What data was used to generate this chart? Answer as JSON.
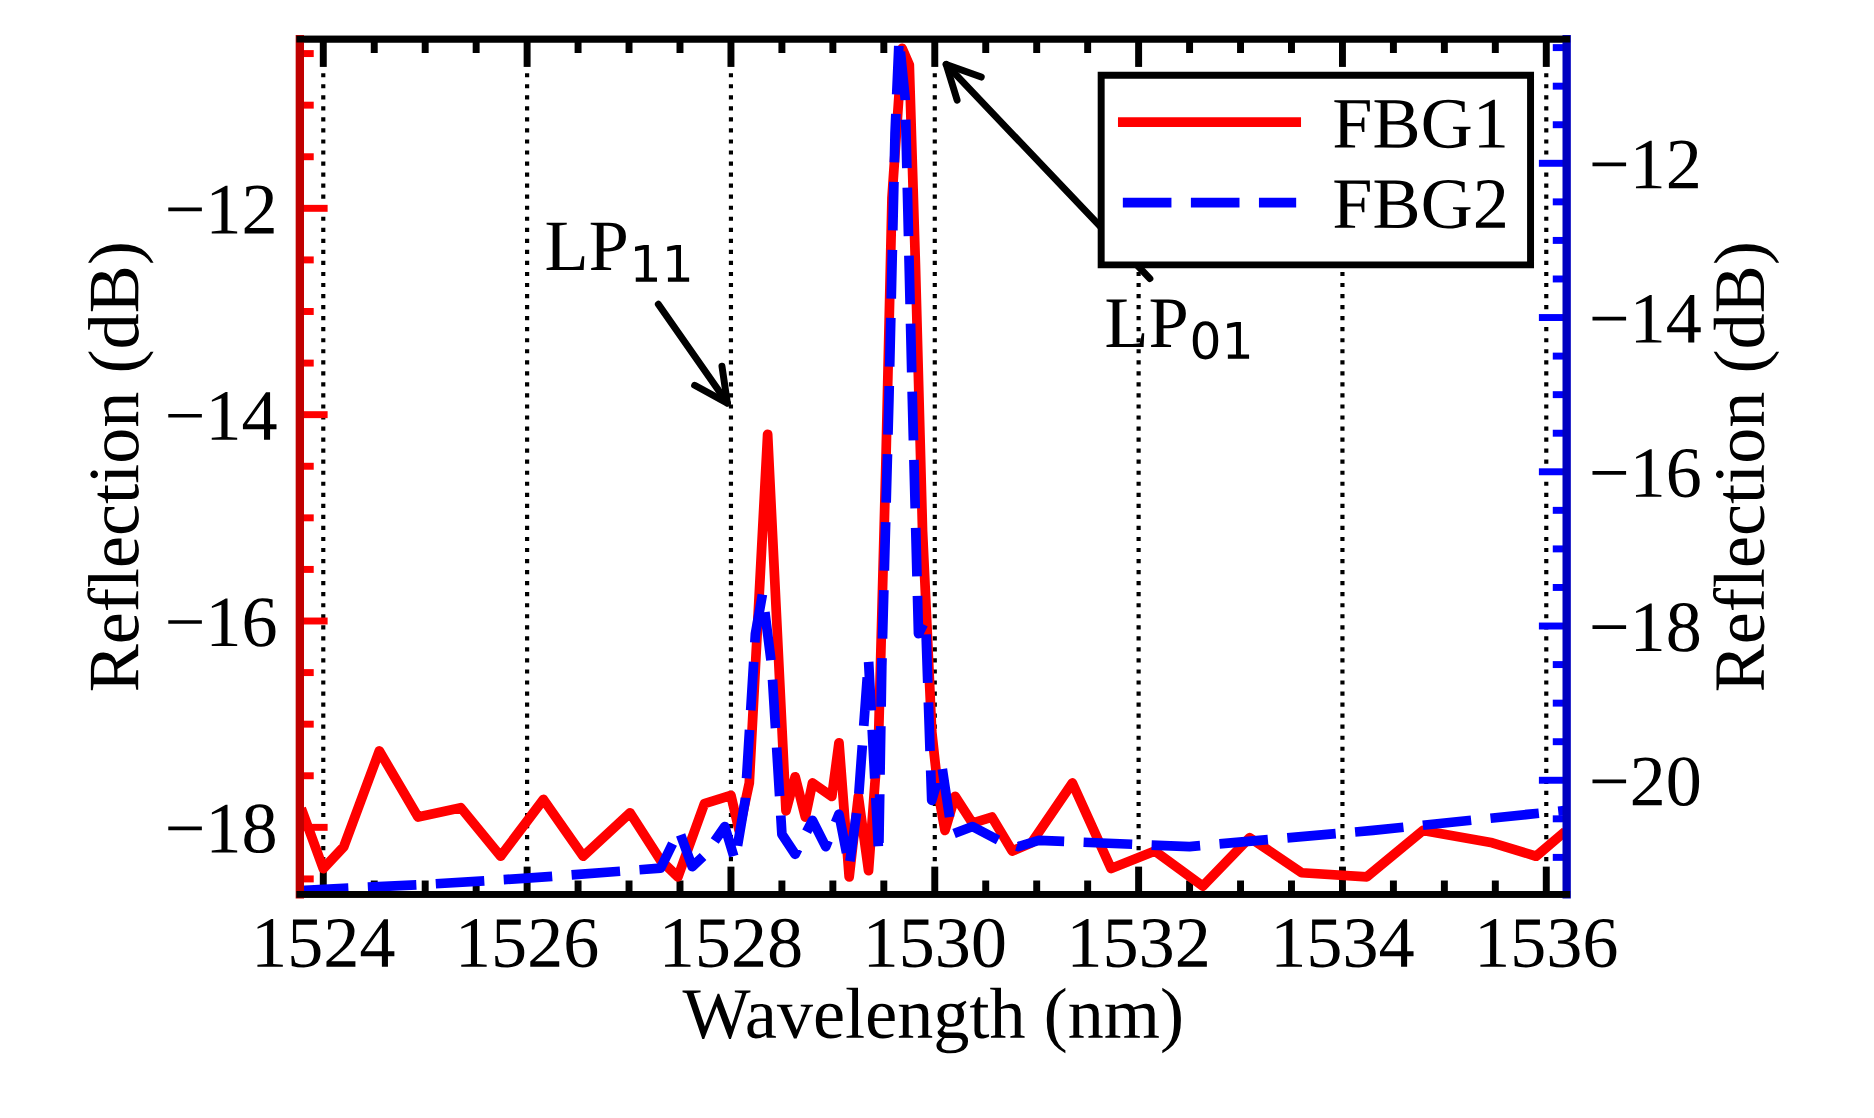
{
  "chart_data": {
    "type": "line",
    "xlabel": "Wavelength (nm)",
    "ylabel": "Reflection (dB)",
    "y2label": "Reflection (dB)",
    "xlim": [
      1523.77,
      1536.2
    ],
    "xticks": [
      1524,
      1526,
      1528,
      1530,
      1532,
      1534,
      1536
    ],
    "ylim": [
      -18.65,
      -10.36
    ],
    "yticks": [
      -18,
      -16,
      -14,
      -12
    ],
    "y2lim": [
      -21.48,
      -10.39
    ],
    "y2ticks": [
      -20,
      -18,
      -16,
      -14,
      -12
    ],
    "grid": "x",
    "legend": "top right",
    "annotations": [
      "LP$_{11}$",
      "LP$_{01}$"
    ],
    "series": [
      {
        "name": "FBG1",
        "color": "#ff0000",
        "line_style": "solid",
        "x": [
          1523.8,
          1524.0,
          1524.2,
          1524.55,
          1524.93,
          1525.35,
          1525.74,
          1526.16,
          1526.55,
          1527.01,
          1527.31,
          1527.48,
          1527.74,
          1528.0,
          1528.08,
          1528.18,
          1528.36,
          1528.54,
          1528.63,
          1528.73,
          1528.8,
          1528.99,
          1529.06,
          1529.16,
          1529.25,
          1529.35,
          1529.45,
          1529.52,
          1529.58,
          1529.68,
          1529.75,
          1529.81,
          1529.88,
          1529.94,
          1529.97,
          1530.04,
          1530.1,
          1530.2,
          1530.37,
          1530.56,
          1530.76,
          1530.95,
          1531.35,
          1531.73,
          1532.16,
          1532.63,
          1533.09,
          1533.6,
          1534.24,
          1534.79,
          1535.47,
          1535.9,
          1536.15
        ],
        "values": [
          -17.86,
          -18.4,
          -18.19,
          -17.26,
          -17.9,
          -17.81,
          -18.28,
          -17.73,
          -18.28,
          -17.86,
          -18.32,
          -18.48,
          -17.77,
          -17.69,
          -18.03,
          -17.57,
          -14.19,
          -17.84,
          -17.51,
          -17.9,
          -17.57,
          -17.7,
          -17.18,
          -18.48,
          -17.7,
          -18.42,
          -17.07,
          -14.48,
          -11.9,
          -10.45,
          -10.61,
          -12.54,
          -15.13,
          -16.41,
          -17.07,
          -17.7,
          -18.03,
          -17.7,
          -17.96,
          -17.9,
          -18.23,
          -18.15,
          -17.57,
          -18.4,
          -18.23,
          -18.57,
          -18.1,
          -18.44,
          -18.48,
          -18.03,
          -18.15,
          -18.28,
          -18.07
        ]
      },
      {
        "name": "FBG2",
        "color": "#0000ff",
        "line_style": "dashed",
        "axis": "y2",
        "x": [
          1523.77,
          1525.0,
          1526.0,
          1527.31,
          1527.49,
          1527.62,
          1527.75,
          1527.94,
          1528.04,
          1528.14,
          1528.24,
          1528.31,
          1528.4,
          1528.5,
          1528.63,
          1528.8,
          1528.93,
          1529.06,
          1529.16,
          1529.25,
          1529.35,
          1529.45,
          1529.48,
          1529.55,
          1529.61,
          1529.65,
          1529.71,
          1529.78,
          1529.84,
          1529.91,
          1529.97,
          1530.07,
          1530.17,
          1530.37,
          1530.63,
          1530.82,
          1531.02,
          1532.5,
          1534.3,
          1536.2
        ],
        "values": [
          -21.43,
          -21.35,
          -21.27,
          -21.14,
          -20.65,
          -21.12,
          -20.96,
          -20.6,
          -21.04,
          -20.26,
          -18.1,
          -17.58,
          -18.52,
          -20.7,
          -20.96,
          -20.52,
          -20.86,
          -20.44,
          -21.12,
          -20.26,
          -18.44,
          -20.96,
          -18.52,
          -15.06,
          -11.61,
          -10.39,
          -11.17,
          -15.06,
          -18.1,
          -17.92,
          -20.26,
          -19.82,
          -20.7,
          -20.6,
          -20.78,
          -20.86,
          -20.78,
          -20.86,
          -20.65,
          -20.39
        ]
      }
    ]
  }
}
